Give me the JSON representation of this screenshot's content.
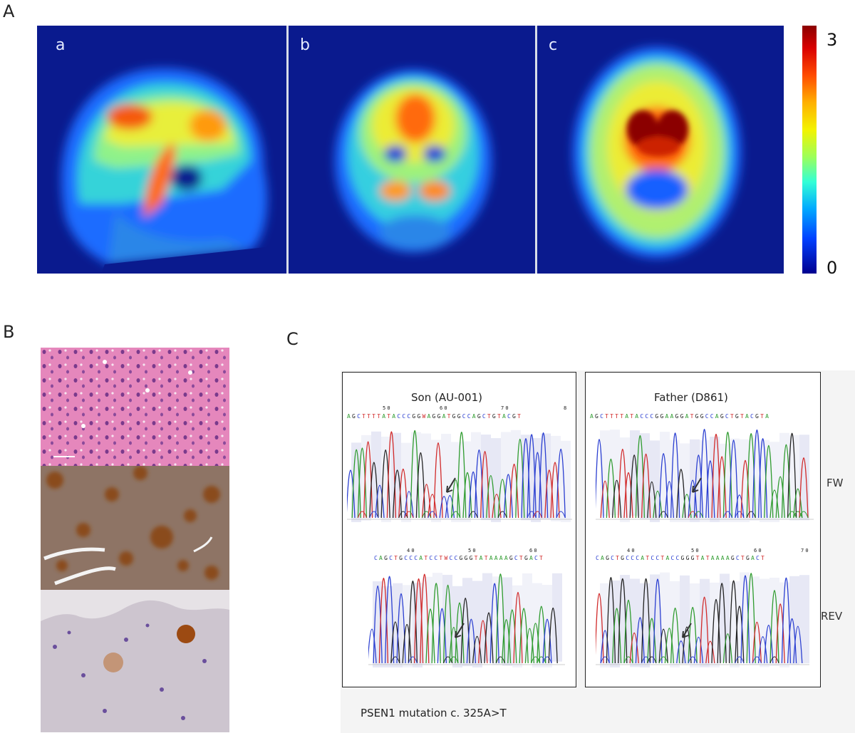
{
  "panel_labels": {
    "a": "A",
    "b": "B",
    "c": "C"
  },
  "pet": {
    "views": [
      {
        "label": "a",
        "view": "sagittal"
      },
      {
        "label": "b",
        "view": "coronal"
      },
      {
        "label": "c",
        "view": "axial"
      }
    ],
    "colorbar": {
      "max_label": "3",
      "min_label": "0"
    }
  },
  "histology": {
    "rows": [
      {
        "name": "he-stain",
        "color": "#e27fb6"
      },
      {
        "name": "amyloid-stain",
        "color": "#8b6d5f"
      },
      {
        "name": "tau-stain",
        "color": "#cbc3cc"
      }
    ]
  },
  "sequencing": {
    "subjects": [
      {
        "title": "Son (AU-001)",
        "fw_seq": "AGCTTTTATACCCGGWAGGATGGCCAGCTGTACGT",
        "fw_ticks": [
          "50",
          "60",
          "70",
          "8"
        ],
        "rev_seq": "CAGCTGCCCATCCTWCCGGGTATAAAAGCTGACT",
        "rev_ticks": [
          "40",
          "50",
          "60"
        ]
      },
      {
        "title": "Father (D861)",
        "fw_seq": "AGCTTTTATACCCGGAAGGATGGCCAGCTGTACGTA",
        "fw_ticks": [],
        "rev_seq": "CAGCTGCCCATCCTACCGGGTATAAAAGCTGACT",
        "rev_ticks": [
          "40",
          "50",
          "60",
          "70"
        ]
      }
    ],
    "row_labels": {
      "fw": "FW",
      "rev": "REV"
    },
    "caption": "PSEN1 mutation   c. 325A>T"
  },
  "colors": {
    "pet_background": "#0a1a8e",
    "base_A": "#2e9b2e",
    "base_C": "#2b3fd1",
    "base_G": "#222222",
    "base_T": "#d12a2a"
  }
}
